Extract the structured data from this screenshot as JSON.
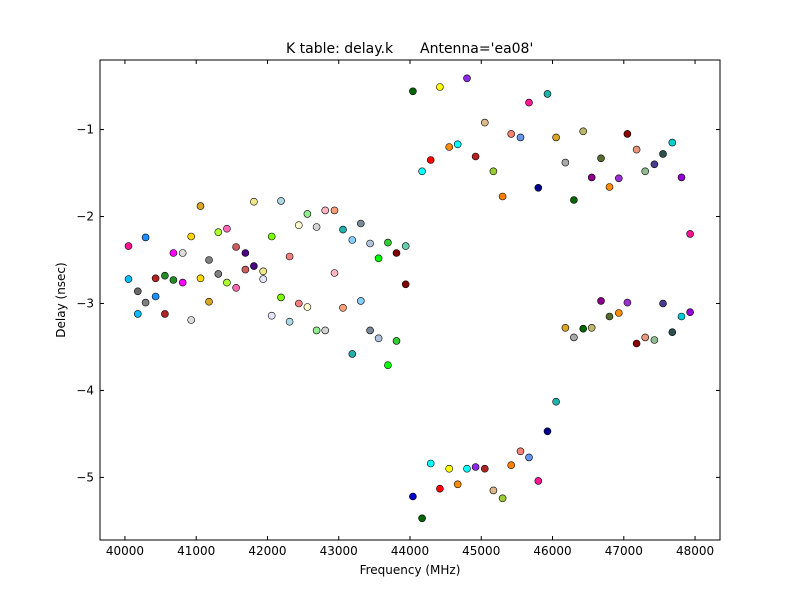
{
  "chart_data": {
    "type": "scatter",
    "title": "K table: delay.k",
    "subtitle": "Antenna='ea08'",
    "xlabel": "Frequency (MHz)",
    "ylabel": "Delay (nsec)",
    "xlim": [
      39650,
      48350
    ],
    "ylim": [
      -5.72,
      -0.2
    ],
    "xticks": [
      {
        "value": 40000,
        "label": "40000"
      },
      {
        "value": 41000,
        "label": "41000"
      },
      {
        "value": 42000,
        "label": "42000"
      },
      {
        "value": 43000,
        "label": "43000"
      },
      {
        "value": 44000,
        "label": "44000"
      },
      {
        "value": 45000,
        "label": "45000"
      },
      {
        "value": 46000,
        "label": "46000"
      },
      {
        "value": 47000,
        "label": "47000"
      },
      {
        "value": 48000,
        "label": "48000"
      }
    ],
    "yticks": [
      {
        "value": -1,
        "label": "−1"
      },
      {
        "value": -2,
        "label": "−2"
      },
      {
        "value": -3,
        "label": "−3"
      },
      {
        "value": -4,
        "label": "−4"
      },
      {
        "value": -5,
        "label": "−5"
      }
    ],
    "grid": false,
    "legend": "none",
    "points": [
      {
        "x": 40050,
        "y": -2.34,
        "color": "#ff1493"
      },
      {
        "x": 40290,
        "y": -2.24,
        "color": "#1e90ff"
      },
      {
        "x": 40050,
        "y": -2.72,
        "color": "#00bfff"
      },
      {
        "x": 40180,
        "y": -2.86,
        "color": "#696969"
      },
      {
        "x": 40180,
        "y": -3.12,
        "color": "#00bfff"
      },
      {
        "x": 40290,
        "y": -2.99,
        "color": "#808080"
      },
      {
        "x": 40430,
        "y": -2.71,
        "color": "#b22222"
      },
      {
        "x": 40430,
        "y": -2.92,
        "color": "#1e90ff"
      },
      {
        "x": 40560,
        "y": -2.68,
        "color": "#228b22"
      },
      {
        "x": 40560,
        "y": -3.12,
        "color": "#b22222"
      },
      {
        "x": 40680,
        "y": -2.42,
        "color": "#ff00ff"
      },
      {
        "x": 40680,
        "y": -2.73,
        "color": "#228b22"
      },
      {
        "x": 40810,
        "y": -2.42,
        "color": "#dcdcdc"
      },
      {
        "x": 40810,
        "y": -2.76,
        "color": "#ff00ff"
      },
      {
        "x": 40930,
        "y": -2.23,
        "color": "#ffd700"
      },
      {
        "x": 40930,
        "y": -3.19,
        "color": "#dcdcdc"
      },
      {
        "x": 41060,
        "y": -1.88,
        "color": "#daa520"
      },
      {
        "x": 41060,
        "y": -2.71,
        "color": "#ffd700"
      },
      {
        "x": 41180,
        "y": -2.5,
        "color": "#808080"
      },
      {
        "x": 41180,
        "y": -2.98,
        "color": "#daa520"
      },
      {
        "x": 41310,
        "y": -2.18,
        "color": "#adff2f"
      },
      {
        "x": 41310,
        "y": -2.66,
        "color": "#808080"
      },
      {
        "x": 41430,
        "y": -2.14,
        "color": "#ff69b4"
      },
      {
        "x": 41430,
        "y": -2.76,
        "color": "#adff2f"
      },
      {
        "x": 41560,
        "y": -2.35,
        "color": "#cd5c5c"
      },
      {
        "x": 41560,
        "y": -2.82,
        "color": "#ff69b4"
      },
      {
        "x": 41690,
        "y": -2.42,
        "color": "#4b0082"
      },
      {
        "x": 41690,
        "y": -2.61,
        "color": "#cd5c5c"
      },
      {
        "x": 41810,
        "y": -1.83,
        "color": "#f0e68c"
      },
      {
        "x": 41810,
        "y": -2.57,
        "color": "#4b0082"
      },
      {
        "x": 41940,
        "y": -2.63,
        "color": "#f0e68c"
      },
      {
        "x": 41940,
        "y": -2.72,
        "color": "#e6e6fa"
      },
      {
        "x": 42060,
        "y": -2.23,
        "color": "#7cfc00"
      },
      {
        "x": 42060,
        "y": -3.14,
        "color": "#e6e6fa"
      },
      {
        "x": 42190,
        "y": -1.82,
        "color": "#add8e6"
      },
      {
        "x": 42190,
        "y": -2.93,
        "color": "#7cfc00"
      },
      {
        "x": 42310,
        "y": -2.46,
        "color": "#f08080"
      },
      {
        "x": 42310,
        "y": -3.21,
        "color": "#add8e6"
      },
      {
        "x": 42440,
        "y": -2.1,
        "color": "#fffacd"
      },
      {
        "x": 42440,
        "y": -3.0,
        "color": "#f08080"
      },
      {
        "x": 42560,
        "y": -1.97,
        "color": "#90ee90"
      },
      {
        "x": 42560,
        "y": -3.04,
        "color": "#fffacd"
      },
      {
        "x": 42690,
        "y": -2.12,
        "color": "#d3d3d3"
      },
      {
        "x": 42690,
        "y": -3.31,
        "color": "#90ee90"
      },
      {
        "x": 42810,
        "y": -1.93,
        "color": "#ffb6c1"
      },
      {
        "x": 42810,
        "y": -3.31,
        "color": "#d3d3d3"
      },
      {
        "x": 42940,
        "y": -1.93,
        "color": "#ffa07a"
      },
      {
        "x": 42940,
        "y": -2.65,
        "color": "#ffb6c1"
      },
      {
        "x": 43060,
        "y": -2.15,
        "color": "#20b2aa"
      },
      {
        "x": 43060,
        "y": -3.05,
        "color": "#ffa07a"
      },
      {
        "x": 43190,
        "y": -2.27,
        "color": "#87cefa"
      },
      {
        "x": 43190,
        "y": -3.58,
        "color": "#20b2aa"
      },
      {
        "x": 43310,
        "y": -2.08,
        "color": "#778899"
      },
      {
        "x": 43310,
        "y": -2.97,
        "color": "#87cefa"
      },
      {
        "x": 43440,
        "y": -2.31,
        "color": "#b0c4de"
      },
      {
        "x": 43440,
        "y": -3.31,
        "color": "#778899"
      },
      {
        "x": 43560,
        "y": -2.48,
        "color": "#00ff00"
      },
      {
        "x": 43560,
        "y": -3.4,
        "color": "#b0c4de"
      },
      {
        "x": 43690,
        "y": -2.3,
        "color": "#32cd32"
      },
      {
        "x": 43690,
        "y": -3.71,
        "color": "#00ff00"
      },
      {
        "x": 43810,
        "y": -2.42,
        "color": "#800000"
      },
      {
        "x": 43810,
        "y": -3.43,
        "color": "#32cd32"
      },
      {
        "x": 43940,
        "y": -2.34,
        "color": "#66cdaa"
      },
      {
        "x": 43940,
        "y": -2.78,
        "color": "#800000"
      },
      {
        "x": 44040,
        "y": -0.56,
        "color": "#006400"
      },
      {
        "x": 44040,
        "y": -5.22,
        "color": "#0000cd"
      },
      {
        "x": 44170,
        "y": -1.48,
        "color": "#00ffff"
      },
      {
        "x": 44170,
        "y": -5.47,
        "color": "#006400"
      },
      {
        "x": 44290,
        "y": -1.35,
        "color": "#ff0000"
      },
      {
        "x": 44290,
        "y": -4.84,
        "color": "#00ffff"
      },
      {
        "x": 44420,
        "y": -0.51,
        "color": "#ffff00"
      },
      {
        "x": 44420,
        "y": -5.13,
        "color": "#ff0000"
      },
      {
        "x": 44550,
        "y": -1.2,
        "color": "#ff8c00"
      },
      {
        "x": 44550,
        "y": -4.9,
        "color": "#ffff00"
      },
      {
        "x": 44670,
        "y": -1.17,
        "color": "#00ffff"
      },
      {
        "x": 44670,
        "y": -5.08,
        "color": "#ff8c00"
      },
      {
        "x": 44800,
        "y": -0.41,
        "color": "#8a2be2"
      },
      {
        "x": 44800,
        "y": -4.9,
        "color": "#00ffff"
      },
      {
        "x": 44920,
        "y": -1.31,
        "color": "#b22222"
      },
      {
        "x": 44920,
        "y": -4.88,
        "color": "#8a2be2"
      },
      {
        "x": 45050,
        "y": -0.92,
        "color": "#deb887"
      },
      {
        "x": 45050,
        "y": -4.9,
        "color": "#b22222"
      },
      {
        "x": 45170,
        "y": -1.48,
        "color": "#9acd32"
      },
      {
        "x": 45170,
        "y": -5.15,
        "color": "#deb887"
      },
      {
        "x": 45300,
        "y": -1.77,
        "color": "#ff7f00"
      },
      {
        "x": 45300,
        "y": -5.24,
        "color": "#9acd32"
      },
      {
        "x": 45420,
        "y": -1.05,
        "color": "#fa8072"
      },
      {
        "x": 45420,
        "y": -4.86,
        "color": "#ff7f00"
      },
      {
        "x": 45550,
        "y": -1.09,
        "color": "#6495ed"
      },
      {
        "x": 45550,
        "y": -4.7,
        "color": "#fa8072"
      },
      {
        "x": 45670,
        "y": -0.69,
        "color": "#ff1493"
      },
      {
        "x": 45670,
        "y": -4.77,
        "color": "#6495ed"
      },
      {
        "x": 45800,
        "y": -1.67,
        "color": "#00008b"
      },
      {
        "x": 45800,
        "y": -5.04,
        "color": "#ff1493"
      },
      {
        "x": 45930,
        "y": -0.59,
        "color": "#20b2aa"
      },
      {
        "x": 45930,
        "y": -4.47,
        "color": "#00008b"
      },
      {
        "x": 46050,
        "y": -1.09,
        "color": "#daa520"
      },
      {
        "x": 46050,
        "y": -4.13,
        "color": "#20b2aa"
      },
      {
        "x": 46180,
        "y": -1.38,
        "color": "#a9a9a9"
      },
      {
        "x": 46180,
        "y": -3.28,
        "color": "#daa520"
      },
      {
        "x": 46300,
        "y": -1.81,
        "color": "#006400"
      },
      {
        "x": 46300,
        "y": -3.39,
        "color": "#a9a9a9"
      },
      {
        "x": 46430,
        "y": -1.02,
        "color": "#bdb76b"
      },
      {
        "x": 46430,
        "y": -3.29,
        "color": "#006400"
      },
      {
        "x": 46550,
        "y": -1.55,
        "color": "#8b008b"
      },
      {
        "x": 46550,
        "y": -3.28,
        "color": "#bdb76b"
      },
      {
        "x": 46680,
        "y": -1.33,
        "color": "#556b2f"
      },
      {
        "x": 46680,
        "y": -2.97,
        "color": "#8b008b"
      },
      {
        "x": 46800,
        "y": -1.66,
        "color": "#ff8c00"
      },
      {
        "x": 46800,
        "y": -3.15,
        "color": "#556b2f"
      },
      {
        "x": 46930,
        "y": -1.56,
        "color": "#9932cc"
      },
      {
        "x": 46930,
        "y": -3.11,
        "color": "#ff8c00"
      },
      {
        "x": 47050,
        "y": -1.05,
        "color": "#8b0000"
      },
      {
        "x": 47050,
        "y": -2.99,
        "color": "#9932cc"
      },
      {
        "x": 47180,
        "y": -1.23,
        "color": "#e9967a"
      },
      {
        "x": 47180,
        "y": -3.46,
        "color": "#8b0000"
      },
      {
        "x": 47300,
        "y": -1.48,
        "color": "#8fbc8f"
      },
      {
        "x": 47300,
        "y": -3.39,
        "color": "#e9967a"
      },
      {
        "x": 47430,
        "y": -1.4,
        "color": "#483d8b"
      },
      {
        "x": 47430,
        "y": -3.42,
        "color": "#8fbc8f"
      },
      {
        "x": 47550,
        "y": -1.28,
        "color": "#2f4f4f"
      },
      {
        "x": 47550,
        "y": -3.0,
        "color": "#483d8b"
      },
      {
        "x": 47680,
        "y": -1.15,
        "color": "#00ced1"
      },
      {
        "x": 47680,
        "y": -3.33,
        "color": "#2f4f4f"
      },
      {
        "x": 47810,
        "y": -1.55,
        "color": "#9400d3"
      },
      {
        "x": 47810,
        "y": -3.15,
        "color": "#00ced1"
      },
      {
        "x": 47930,
        "y": -2.2,
        "color": "#ff1493"
      },
      {
        "x": 47930,
        "y": -3.1,
        "color": "#9400d3"
      }
    ]
  }
}
